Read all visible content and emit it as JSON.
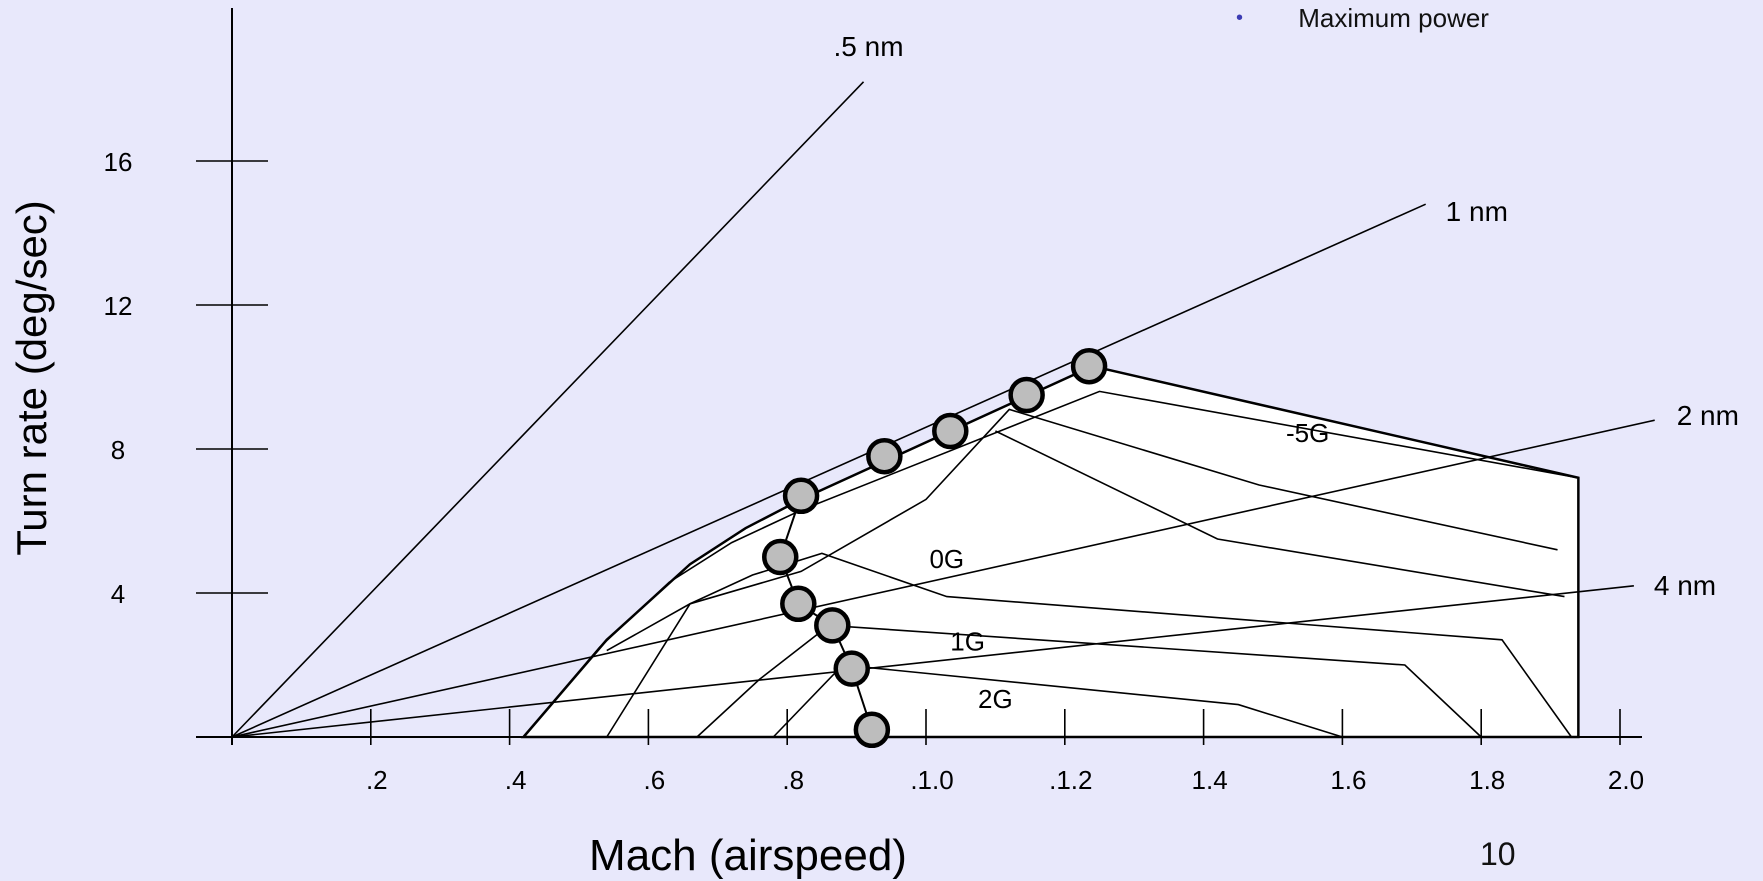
{
  "legend": {
    "bullet": "•",
    "text": "Maximum power",
    "bullet_color": "#3b3bb3"
  },
  "page_number": "10",
  "chart_data": {
    "type": "line",
    "title": "",
    "xlabel": "Mach (airspeed)",
    "ylabel": "Turn rate (deg/sec)",
    "xlim": [
      0,
      2.0
    ],
    "ylim": [
      0,
      20
    ],
    "x_ticks": [
      {
        "v": 0.2,
        "label": ".2"
      },
      {
        "v": 0.4,
        "label": ".4"
      },
      {
        "v": 0.6,
        "label": ".6"
      },
      {
        "v": 0.8,
        "label": ".8"
      },
      {
        "v": 1.0,
        "label": ".1.0"
      },
      {
        "v": 1.2,
        "label": ".1.2"
      },
      {
        "v": 1.4,
        "label": "1.4"
      },
      {
        "v": 1.6,
        "label": "1.6"
      },
      {
        "v": 1.8,
        "label": "1.8"
      },
      {
        "v": 2.0,
        "label": "2.0"
      }
    ],
    "y_ticks": [
      {
        "v": 4,
        "label": "4"
      },
      {
        "v": 8,
        "label": "8"
      },
      {
        "v": 12,
        "label": "12"
      },
      {
        "v": 16,
        "label": "16"
      }
    ],
    "radius_lines": [
      {
        "label": ".5 nm",
        "x": [
          0,
          0.91
        ],
        "y": [
          0,
          18.2
        ]
      },
      {
        "label": "1 nm",
        "x": [
          0,
          1.72
        ],
        "y": [
          0,
          14.8
        ]
      },
      {
        "label": "2 nm",
        "x": [
          0,
          2.05
        ],
        "y": [
          0,
          8.8
        ]
      },
      {
        "label": "4 nm",
        "x": [
          0,
          2.02
        ],
        "y": [
          0,
          4.2
        ]
      }
    ],
    "envelope": {
      "x": [
        0.42,
        0.54,
        0.66,
        0.74,
        0.82,
        1.24,
        1.94,
        1.94,
        0.42
      ],
      "y": [
        0,
        2.7,
        4.8,
        5.8,
        6.6,
        10.3,
        7.2,
        0,
        0
      ]
    },
    "g_curves": [
      {
        "label": "-5G",
        "x": [
          0.42,
          0.53,
          0.63,
          0.72,
          0.82,
          1.25,
          1.94
        ],
        "y": [
          0,
          2.5,
          4.3,
          5.4,
          6.3,
          9.6,
          7.2
        ]
      },
      {
        "label": "",
        "x": [
          0.54,
          0.66,
          0.82,
          1.0,
          1.12,
          1.48,
          1.91
        ],
        "y": [
          2.4,
          3.7,
          4.6,
          6.6,
          9.1,
          7.0,
          5.2
        ]
      },
      {
        "label": "",
        "x": [
          1.1,
          1.42,
          1.92
        ],
        "y": [
          8.5,
          5.5,
          3.9
        ]
      },
      {
        "label": "0G",
        "x": [
          0.54,
          0.66,
          0.75,
          0.85,
          1.03,
          1.83,
          1.93
        ],
        "y": [
          0,
          3.7,
          4.5,
          5.1,
          3.9,
          2.7,
          0
        ]
      },
      {
        "label": "1G",
        "x": [
          0.67,
          0.76,
          0.86,
          1.69,
          1.8
        ],
        "y": [
          0,
          1.6,
          3.1,
          2.0,
          0
        ]
      },
      {
        "label": "2G",
        "x": [
          0.78,
          0.88,
          1.45,
          1.6
        ],
        "y": [
          0,
          2.0,
          0.9,
          0
        ]
      }
    ],
    "max_power_points": {
      "name": "Maximum power",
      "x": [
        1.235,
        1.145,
        1.035,
        0.94,
        0.82,
        0.79,
        0.816,
        0.865,
        0.893,
        0.922
      ],
      "y": [
        10.3,
        9.5,
        8.5,
        7.8,
        6.7,
        5.0,
        3.7,
        3.1,
        1.9,
        0.2
      ]
    }
  }
}
